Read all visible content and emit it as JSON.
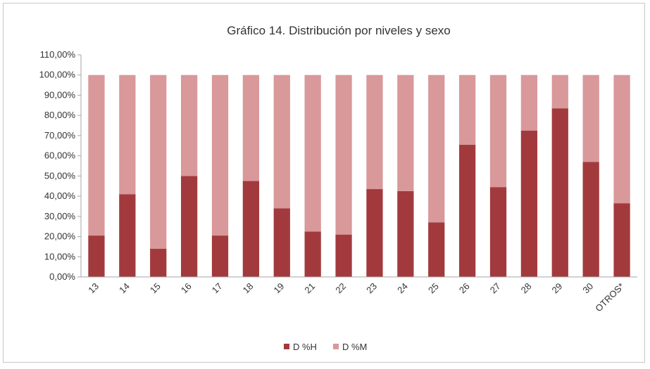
{
  "chart_data": {
    "type": "bar",
    "stacked": true,
    "title": "Gráfico 14. Distribución por niveles y sexo",
    "categories": [
      "13",
      "14",
      "15",
      "16",
      "17",
      "18",
      "19",
      "21",
      "22",
      "23",
      "24",
      "25",
      "26",
      "27",
      "28",
      "29",
      "30",
      "OTROS*"
    ],
    "series": [
      {
        "name": "D %H",
        "color": "#a23a3d",
        "values": [
          20.5,
          41,
          14,
          50,
          20.5,
          47.5,
          34,
          22.5,
          21,
          43.5,
          42.5,
          27,
          65.5,
          44.5,
          72.5,
          83.5,
          57,
          36.5
        ]
      },
      {
        "name": "D %M",
        "color": "#d9989a",
        "values": [
          79.5,
          59,
          86,
          50,
          79.5,
          52.5,
          66,
          77.5,
          79,
          56.5,
          57.5,
          73,
          34.5,
          55.5,
          27.5,
          16.5,
          43,
          63.5
        ]
      }
    ],
    "ylim": [
      0,
      110
    ],
    "yticks": [
      "0,00%",
      "10,00%",
      "20,00%",
      "30,00%",
      "40,00%",
      "50,00%",
      "60,00%",
      "70,00%",
      "80,00%",
      "90,00%",
      "100,00%",
      "110,00%"
    ],
    "grid": false,
    "legend": "bottom"
  }
}
